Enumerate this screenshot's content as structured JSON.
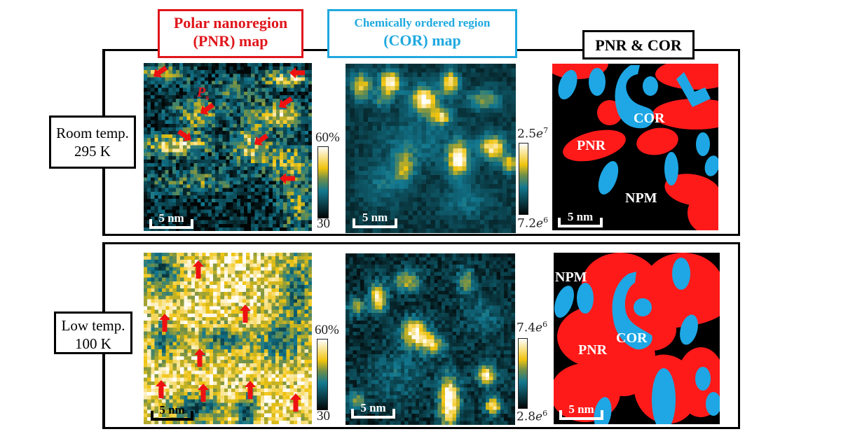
{
  "headers": {
    "pnr": {
      "line1": "Polar nanoregion",
      "line2": "(PNR) map",
      "color": "#e0161c"
    },
    "cor": {
      "line1": "Chemically ordered region",
      "line2": "(COR) map",
      "color": "#1fa9df"
    },
    "both": {
      "label": "PNR & COR"
    }
  },
  "rows": [
    {
      "label_line1": "Room temp.",
      "label_line2": "295 K",
      "pnr_map": {
        "colorbar_max": "60%",
        "colorbar_min": "30",
        "scale_bar": "5 nm",
        "arrow_direction": "left-down",
        "ps_label": "P",
        "ps_sub": "s"
      },
      "cor_map": {
        "colorbar_max_mant": "2.5",
        "colorbar_max_exp": "7",
        "colorbar_min_mant": "7.2",
        "colorbar_min_exp": "6",
        "scale_bar": "5 nm"
      },
      "schematic": {
        "labels": {
          "pnr": "PNR",
          "cor": "COR",
          "npm": "NPM"
        },
        "scale_bar": "5 nm"
      }
    },
    {
      "label_line1": "Low temp.",
      "label_line2": "100 K",
      "pnr_map": {
        "colorbar_max": "60%",
        "colorbar_min": "30",
        "scale_bar": "5 nm",
        "arrow_direction": "up"
      },
      "cor_map": {
        "colorbar_max_mant": "7.4",
        "colorbar_max_exp": "6",
        "colorbar_min_mant": "2.8",
        "colorbar_min_exp": "6",
        "scale_bar": "5 nm"
      },
      "schematic": {
        "labels": {
          "pnr": "PNR",
          "cor": "COR",
          "npm": "NPM"
        },
        "scale_bar": "5 nm"
      }
    }
  ],
  "colors": {
    "pnr_red": "#ff1a1a",
    "cor_blue": "#1ea7e4",
    "background_black": "#000000",
    "arrow_red": "#ee1111"
  },
  "colormap": [
    "#020606",
    "#0a3d47",
    "#13788f",
    "#6f8f4a",
    "#f1c40f",
    "#ffffff"
  ]
}
